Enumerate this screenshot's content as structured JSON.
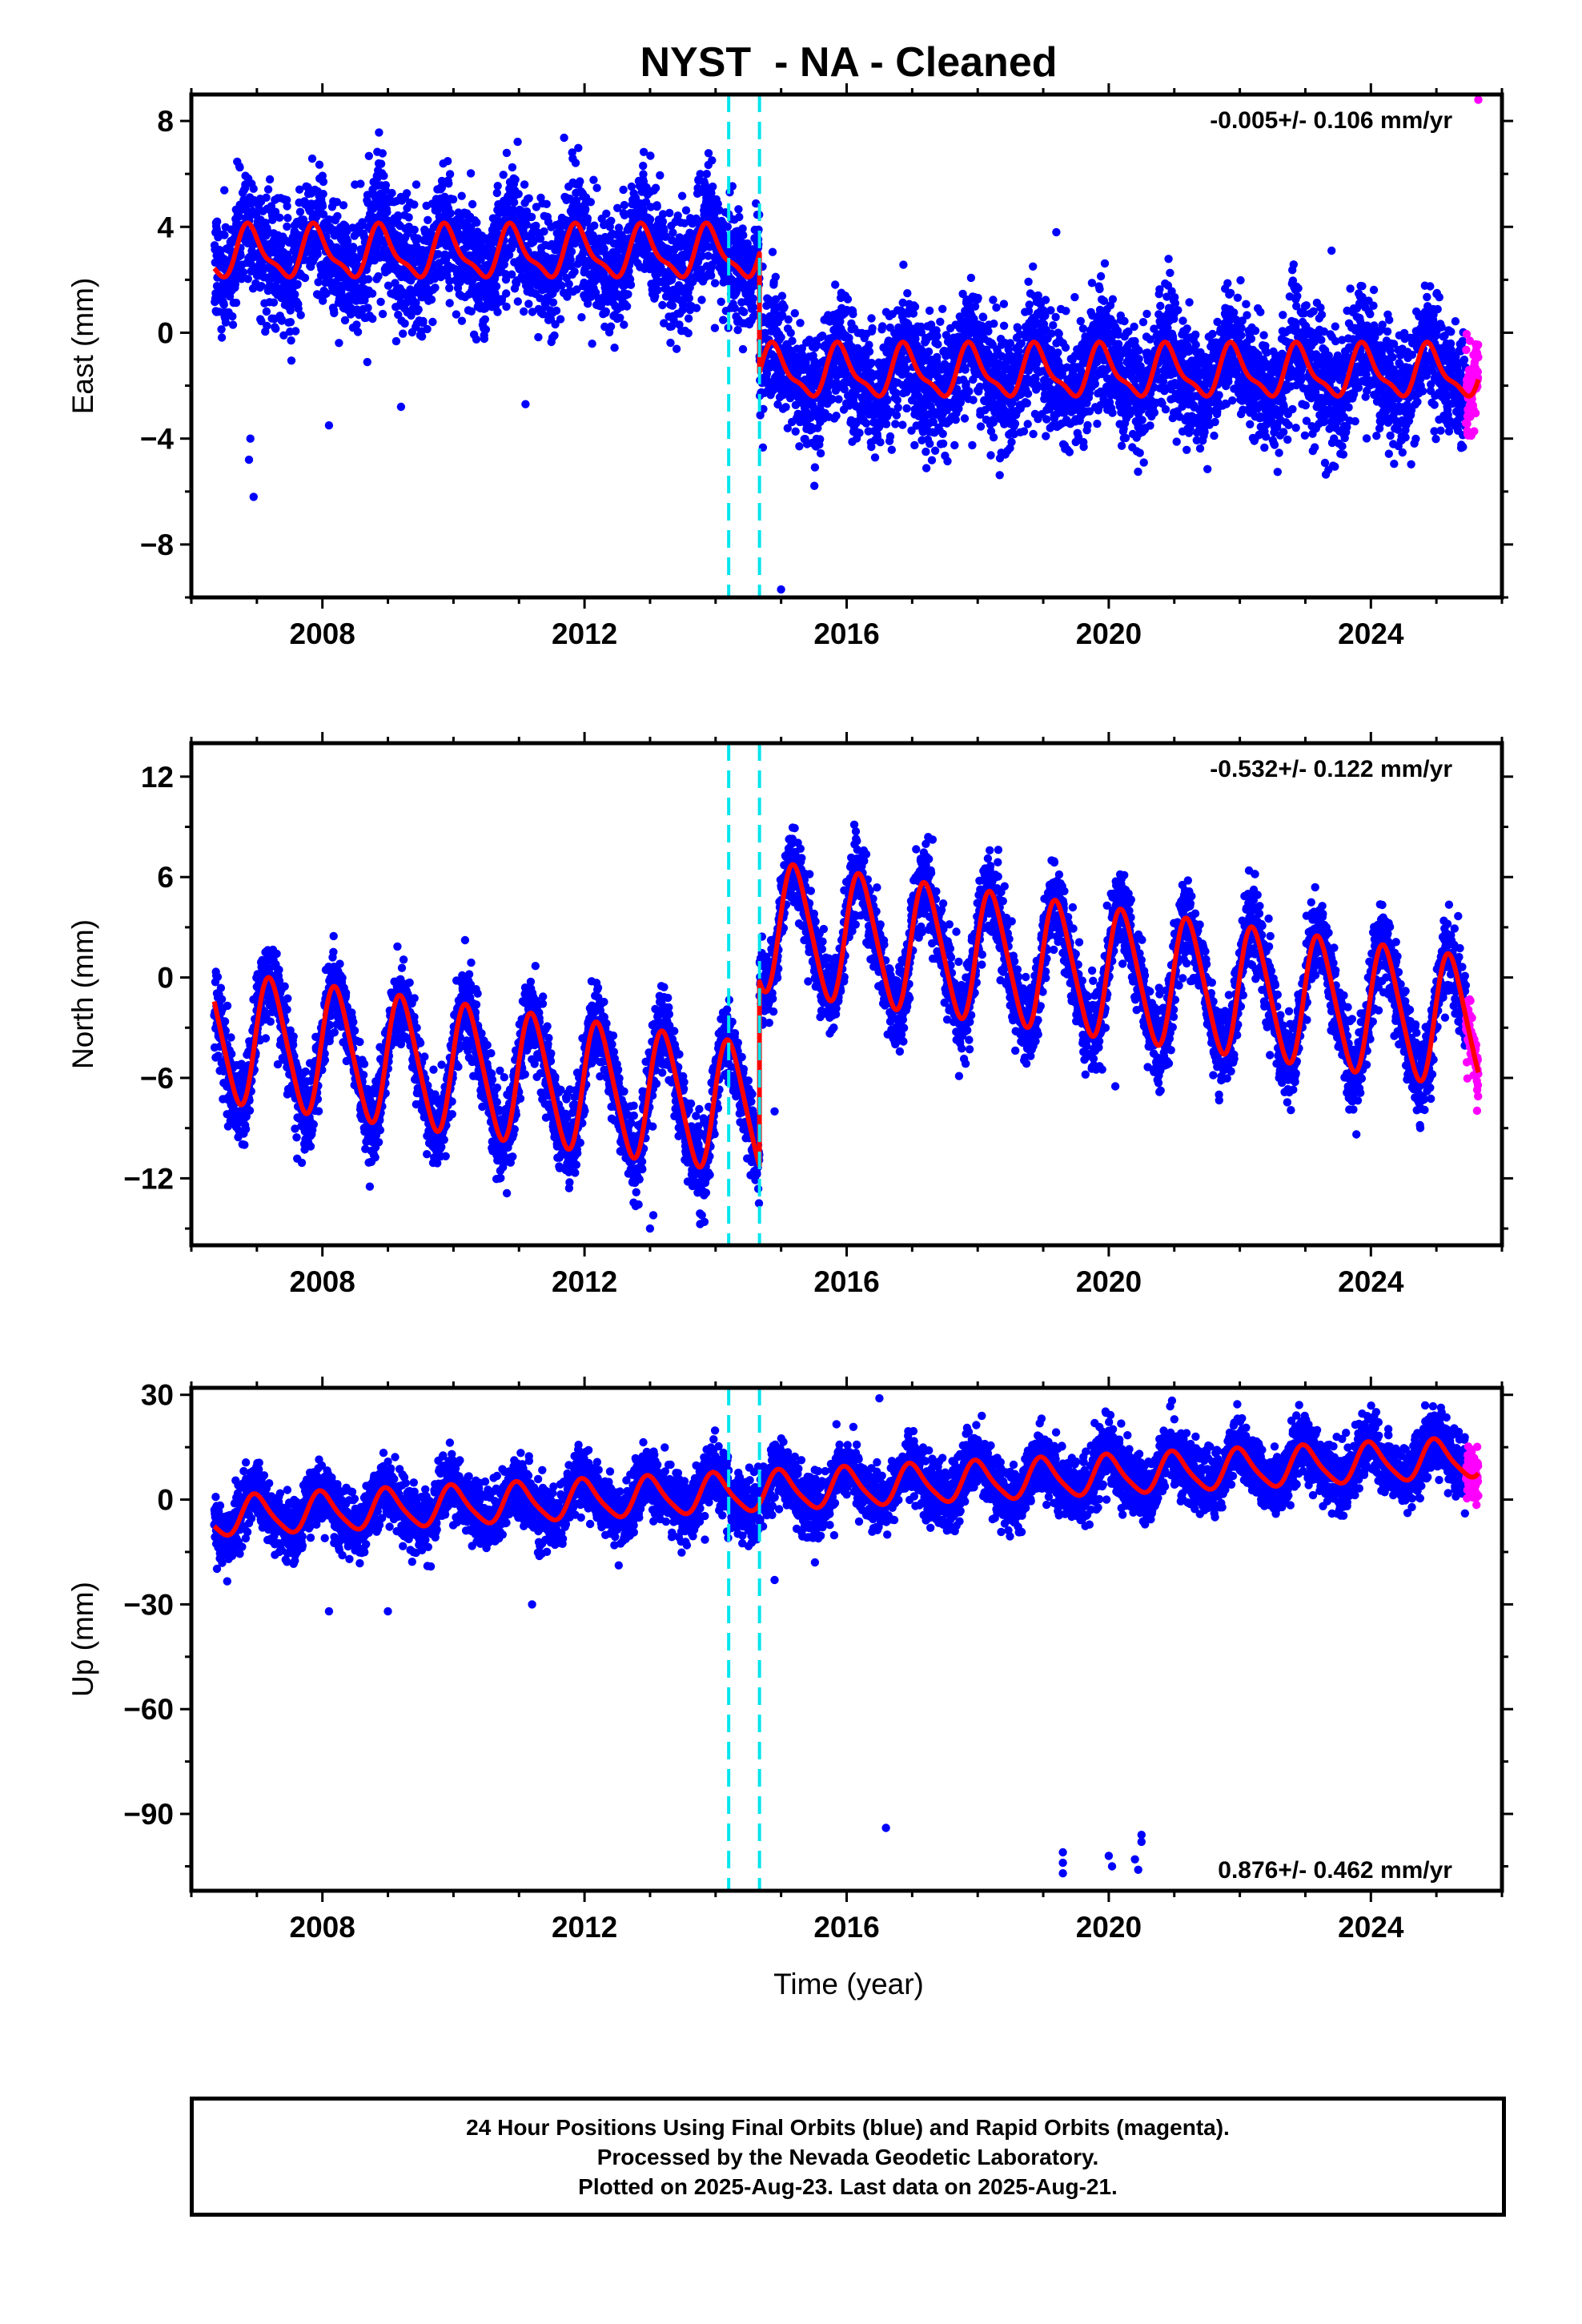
{
  "colors": {
    "final_orbits": "#0000ff",
    "rapid_orbits": "#ff00ff",
    "model_fit": "#ff0000",
    "steps": "#00e5ee",
    "frame": "#000000"
  },
  "figure_title": "NYST  - NA - Cleaned",
  "xlabel": "Time (year)",
  "footer": {
    "line1": "24 Hour Positions Using Final Orbits (blue) and Rapid Orbits (magenta).",
    "line2": "Processed by the Nevada Geodetic Laboratory.",
    "line3": "Plotted on 2025-Aug-23. Last data on 2025-Aug-21."
  },
  "chart_data": [
    {
      "type": "scatter",
      "panel": "east",
      "title": "NYST  - NA - Cleaned",
      "ylabel": "East (mm)",
      "rate_label": "-0.005+/- 0.106 mm/yr",
      "rate_position": "top-right",
      "xlim": [
        2006.0,
        2026.0
      ],
      "ylim": [
        -10.0,
        9.0
      ],
      "xticks": [
        2008,
        2012,
        2016,
        2020,
        2024
      ],
      "yticks": [
        -8,
        -4,
        0,
        4,
        8
      ],
      "ytick_labels": [
        "−8",
        "−4",
        "0",
        "4",
        "8"
      ],
      "steps": [
        2014.2,
        2014.67
      ],
      "data_start": 2006.35,
      "data_end": 2025.64,
      "rapid_start": 2025.45,
      "model": {
        "pre_offset": 3.0,
        "post_offset": -1.5,
        "step_year": 2014.67,
        "annual_amp": 0.9,
        "semiannual_amp": 0.3,
        "annual_phase": 2.2,
        "scatter_sd": 1.1
      },
      "outliers": [
        {
          "x": 2006.95,
          "y": -6.2
        },
        {
          "x": 2006.9,
          "y": -4.0
        },
        {
          "x": 2006.88,
          "y": -4.8
        },
        {
          "x": 2008.1,
          "y": -3.5
        },
        {
          "x": 2009.2,
          "y": -2.8
        },
        {
          "x": 2011.1,
          "y": -2.7
        },
        {
          "x": 2015.0,
          "y": -9.7
        },
        {
          "x": 2019.2,
          "y": 3.8
        },
        {
          "x": 2023.4,
          "y": 3.1
        },
        {
          "x": 2025.64,
          "y": 8.8
        }
      ],
      "series": [
        {
          "name": "Final Orbits (blue)"
        },
        {
          "name": "Rapid Orbits (magenta)"
        }
      ]
    },
    {
      "type": "scatter",
      "panel": "north",
      "ylabel": "North (mm)",
      "rate_label": "-0.532+/- 0.122 mm/yr",
      "rate_position": "top-right",
      "xlim": [
        2006.0,
        2026.0
      ],
      "ylim": [
        -16.0,
        14.0
      ],
      "xticks": [
        2008,
        2012,
        2016,
        2020,
        2024
      ],
      "yticks": [
        -12,
        -6,
        0,
        6,
        12
      ],
      "ytick_labels": [
        "−12",
        "−6",
        "0",
        "6",
        "12"
      ],
      "steps": [
        2014.2,
        2014.67
      ],
      "data_start": 2006.35,
      "data_end": 2025.64,
      "rapid_start": 2025.45,
      "model": {
        "pre_offset": -3.5,
        "post_offset": 7.5,
        "step_year": 2014.67,
        "rate": -0.532,
        "ref_year": 2006.35,
        "annual_amp": 3.8,
        "semiannual_amp": 0.5,
        "annual_phase": 0.2,
        "scatter_sd": 1.2
      },
      "outliers": [
        {
          "x": 2013.0,
          "y": -15.0
        },
        {
          "x": 2013.05,
          "y": -14.2
        },
        {
          "x": 2014.9,
          "y": -8.0
        },
        {
          "x": 2019.9,
          "y": -5.5
        },
        {
          "x": 2020.1,
          "y": -6.5
        },
        {
          "x": 2022.6,
          "y": -6.0
        },
        {
          "x": 2024.9,
          "y": -6.0
        }
      ]
    },
    {
      "type": "scatter",
      "panel": "up",
      "ylabel": "Up (mm)",
      "rate_label": "0.876+/- 0.462 mm/yr",
      "rate_position": "bottom-right",
      "xlim": [
        2006.0,
        2026.0
      ],
      "ylim": [
        -112.0,
        32.0
      ],
      "xticks": [
        2008,
        2012,
        2016,
        2020,
        2024
      ],
      "yticks": [
        -90,
        -60,
        -30,
        0,
        30
      ],
      "ytick_labels": [
        "−90",
        "−60",
        "−30",
        "0",
        "30"
      ],
      "steps": [
        2014.2,
        2014.67
      ],
      "data_start": 2006.35,
      "data_end": 2025.64,
      "rapid_start": 2025.45,
      "model": {
        "pre_offset": -5.0,
        "post_offset": -5.0,
        "step_year": 2014.67,
        "rate": 0.876,
        "ref_year": 2006.35,
        "annual_amp": 5.5,
        "semiannual_amp": 1.0,
        "annual_phase": 1.6,
        "scatter_sd": 4.5
      },
      "outliers": [
        {
          "x": 2008.1,
          "y": -32.0
        },
        {
          "x": 2009.0,
          "y": -32.0
        },
        {
          "x": 2011.2,
          "y": -30.0
        },
        {
          "x": 2014.9,
          "y": -23.0
        },
        {
          "x": 2016.5,
          "y": 29.0
        },
        {
          "x": 2016.6,
          "y": -94.0
        },
        {
          "x": 2019.3,
          "y": -101.0
        },
        {
          "x": 2019.3,
          "y": -104.0
        },
        {
          "x": 2019.3,
          "y": -107.0
        },
        {
          "x": 2020.0,
          "y": -102.0
        },
        {
          "x": 2020.05,
          "y": -105.0
        },
        {
          "x": 2020.4,
          "y": -103.0
        },
        {
          "x": 2020.5,
          "y": -96.0
        },
        {
          "x": 2020.5,
          "y": -98.0
        },
        {
          "x": 2020.45,
          "y": -106.0
        }
      ]
    }
  ]
}
